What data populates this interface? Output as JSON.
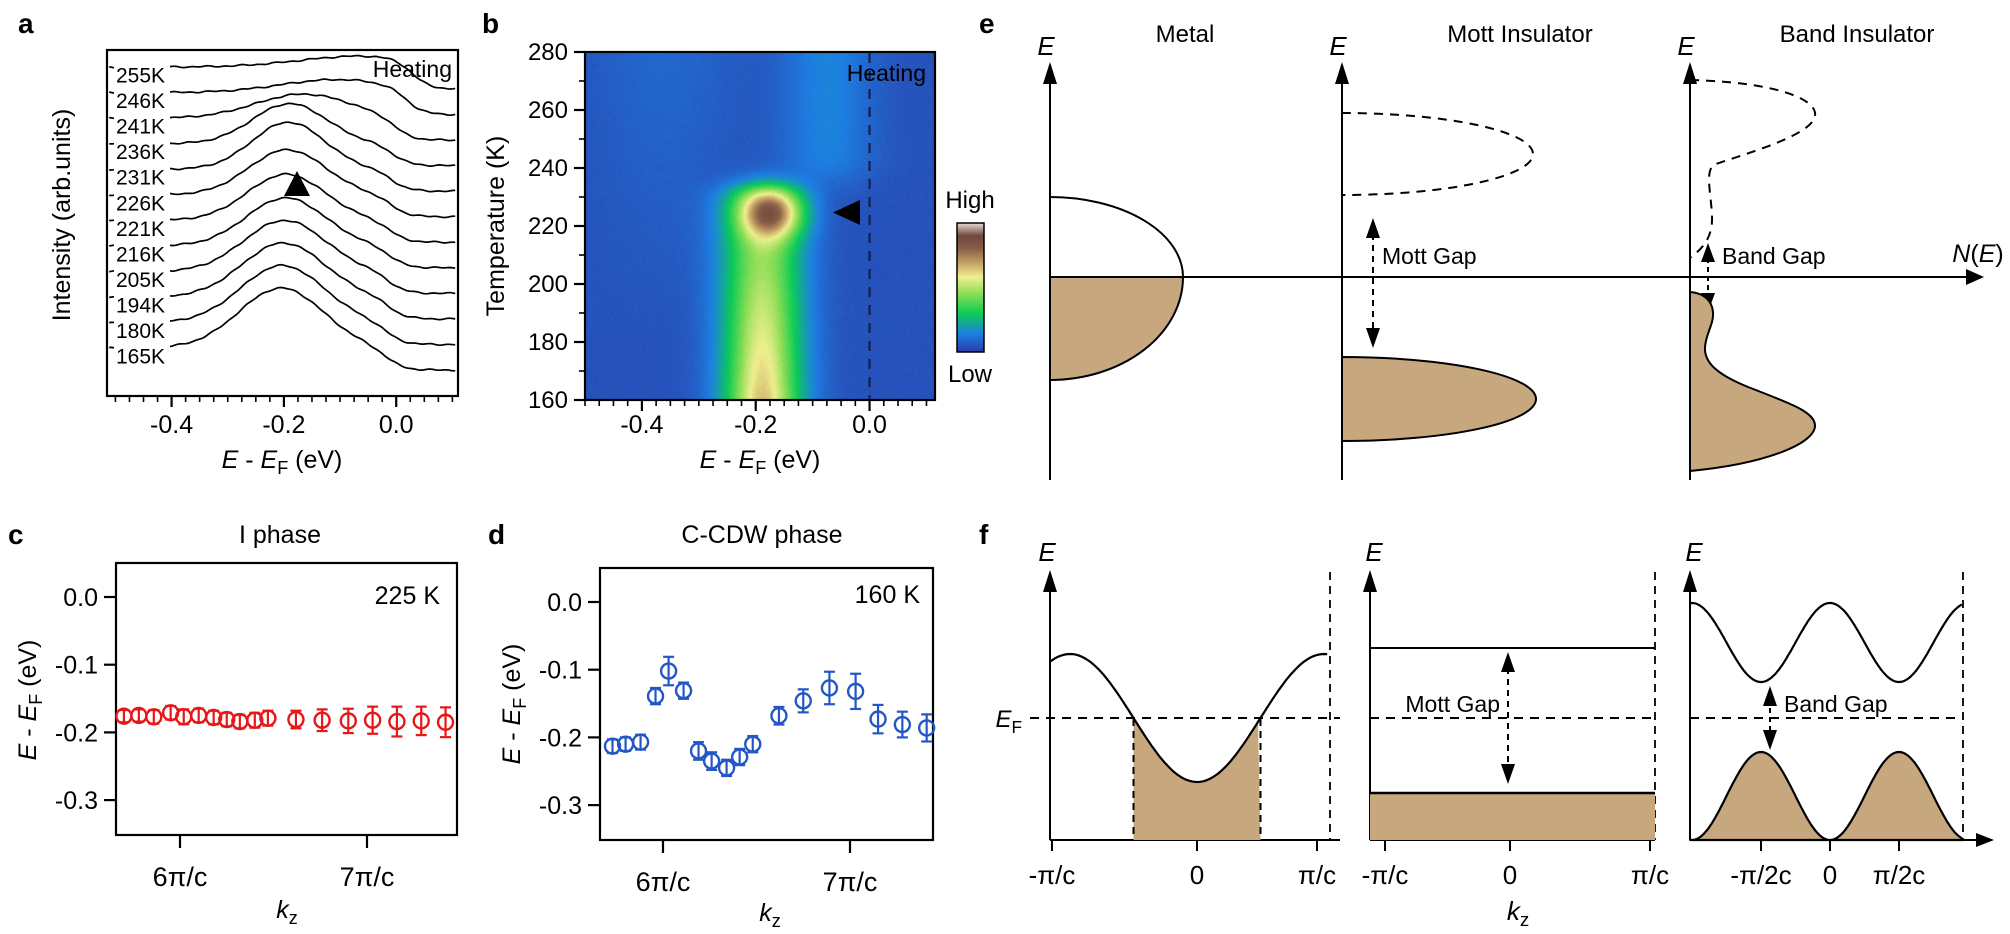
{
  "colors": {
    "tan": "#c7a77d",
    "red": "#e81616",
    "blue": "#2457c5",
    "heat_background": "#2b3aa5"
  },
  "panel_letters": {
    "a": "a",
    "b": "b",
    "c": "c",
    "d": "d",
    "e": "e",
    "f": "f"
  },
  "chart_data": [
    {
      "panel": "a",
      "type": "line",
      "annotation": "Heating",
      "ylabel": "Intensity (arb.units)",
      "xlabel": "{i:E} - {i:E}{s:F} (eV)",
      "xlim": [
        -0.515,
        0.11
      ],
      "x_major_ticks": [
        -0.4,
        -0.2,
        0.0
      ],
      "x_tick_labels": [
        "-0.4",
        "-0.2",
        "0.0"
      ],
      "x_minor_step": 0.025,
      "marker_E": -0.19,
      "curves": [
        {
          "label": "255K",
          "center": -0.06,
          "width": 0.11,
          "amp": 11,
          "edge": 0.03
        },
        {
          "label": "246K",
          "center": -0.105,
          "width": 0.1,
          "amp": 13,
          "edge": 0.02
        },
        {
          "label": "241K",
          "center": -0.165,
          "width": 0.085,
          "amp": 24,
          "edge": 0.0
        },
        {
          "label": "236K",
          "center": -0.19,
          "width": 0.066,
          "amp": 40,
          "edge": -0.005
        },
        {
          "label": "231K",
          "center": -0.192,
          "width": 0.064,
          "amp": 47,
          "edge": -0.008
        },
        {
          "label": "226K",
          "center": -0.194,
          "width": 0.068,
          "amp": 45,
          "edge": -0.008
        },
        {
          "label": "221K",
          "center": -0.196,
          "width": 0.069,
          "amp": 46,
          "edge": -0.01
        },
        {
          "label": "216K",
          "center": -0.197,
          "width": 0.07,
          "amp": 48,
          "edge": -0.01
        },
        {
          "label": "205K",
          "center": -0.199,
          "width": 0.072,
          "amp": 51,
          "edge": -0.012
        },
        {
          "label": "194K",
          "center": -0.201,
          "width": 0.073,
          "amp": 54,
          "edge": -0.012
        },
        {
          "label": "180K",
          "center": -0.203,
          "width": 0.074,
          "amp": 57,
          "edge": -0.015
        },
        {
          "label": "165K",
          "center": -0.205,
          "width": 0.075,
          "amp": 60,
          "edge": -0.015
        }
      ]
    },
    {
      "panel": "b",
      "type": "heatmap",
      "annotation": "Heating",
      "ylabel": "Temperature (K)",
      "xlabel": "{i:E} - {i:E}{s:F} (eV)",
      "xlim": [
        -0.5,
        0.115
      ],
      "ylim": [
        160,
        280
      ],
      "x_major_ticks": [
        -0.4,
        -0.2,
        0.0
      ],
      "x_tick_labels": [
        "-0.4",
        "-0.2",
        "0.0"
      ],
      "x_minor_step": 0.025,
      "y_major_step": 20,
      "y_minor_step": 10,
      "y_tick_labels": [
        "160",
        "180",
        "200",
        "220",
        "240",
        "260",
        "280"
      ],
      "dashed_line_E": 0.0,
      "marker": {
        "T": 225,
        "E": -0.045
      },
      "colorbar": {
        "high_label": "High",
        "low_label": "Low",
        "stops": [
          [
            0,
            "#2b3aa5"
          ],
          [
            0.14,
            "#1d7fe3"
          ],
          [
            0.3,
            "#0ccc55"
          ],
          [
            0.45,
            "#8add55"
          ],
          [
            0.58,
            "#f0ef8e"
          ],
          [
            0.7,
            "#c09a62"
          ],
          [
            0.8,
            "#8a5f48"
          ],
          [
            0.9,
            "#6f473e"
          ],
          [
            1,
            "#ead9d4"
          ]
        ]
      },
      "model": {
        "background": 0.05,
        "wash": {
          "E": -0.36,
          "sigma": 0.09,
          "amp": 0.045
        },
        "column": {
          "center": -0.188,
          "sigma": 0.05,
          "amp_base": 0.36,
          "amp_slope": 0.0022,
          "T_cutoff": 233.5,
          "cutoff_width": 2.0
        },
        "core": {
          "amp": 0.08,
          "sigma": 0.028,
          "T_full": 205,
          "T_range": 45
        },
        "hotspot": {
          "T": 224.5,
          "T_sigma": 6.0,
          "E": -0.172,
          "E_sigma": 0.038,
          "amp": 0.46
        },
        "high_T_branch": {
          "E": -0.075,
          "sigma": 0.055,
          "amp": 0.1,
          "T_onset": 236,
          "onset_width": 3
        }
      }
    },
    {
      "panel": "c",
      "type": "scatter",
      "title": "I phase",
      "annotation": "225 K",
      "color": "#e81616",
      "xlabel": "{i:k}{s:z}",
      "ylabel": "{i:E} - {i:E}{s:F} (eV)",
      "x_unit": "π/c",
      "x_ticks": [
        {
          "v": 6,
          "label": "6π/c"
        },
        {
          "v": 7,
          "label": "7π/c"
        }
      ],
      "y_ticks": [
        {
          "v": 0.0,
          "label": "0.0"
        },
        {
          "v": -0.1,
          "label": "-0.1"
        },
        {
          "v": -0.2,
          "label": "-0.2"
        },
        {
          "v": -0.3,
          "label": "-0.3"
        }
      ],
      "points": {
        "kz": [
          5.7,
          5.78,
          5.86,
          5.95,
          6.02,
          6.1,
          6.18,
          6.25,
          6.32,
          6.4,
          6.47,
          6.62,
          6.76,
          6.9,
          7.03,
          7.16,
          7.29,
          7.42
        ],
        "E": [
          -0.176,
          -0.175,
          -0.177,
          -0.171,
          -0.177,
          -0.175,
          -0.178,
          -0.181,
          -0.184,
          -0.182,
          -0.179,
          -0.181,
          -0.182,
          -0.183,
          -0.182,
          -0.184,
          -0.183,
          -0.185
        ],
        "err": [
          0.009,
          0.009,
          0.01,
          0.01,
          0.011,
          0.01,
          0.01,
          0.01,
          0.01,
          0.011,
          0.011,
          0.013,
          0.016,
          0.018,
          0.02,
          0.022,
          0.021,
          0.022
        ]
      }
    },
    {
      "panel": "d",
      "type": "scatter",
      "title": "C-CDW phase",
      "annotation": "160 K",
      "color": "#2457c5",
      "xlabel": "{i:k}{s:z}",
      "ylabel": "{i:E} - {i:E}{s:F} (eV)",
      "x_unit": "π/c",
      "x_ticks": [
        {
          "v": 6,
          "label": "6π/c"
        },
        {
          "v": 7,
          "label": "7π/c"
        }
      ],
      "y_ticks": [
        {
          "v": 0.0,
          "label": "0.0"
        },
        {
          "v": -0.1,
          "label": "-0.1"
        },
        {
          "v": -0.2,
          "label": "-0.2"
        },
        {
          "v": -0.3,
          "label": "-0.3"
        }
      ],
      "points": {
        "kz": [
          5.73,
          5.8,
          5.88,
          5.96,
          6.03,
          6.11,
          6.19,
          6.26,
          6.34,
          6.41,
          6.48,
          6.62,
          6.75,
          6.89,
          7.03,
          7.15,
          7.28,
          7.41
        ],
        "E": [
          -0.213,
          -0.21,
          -0.207,
          -0.139,
          -0.102,
          -0.131,
          -0.22,
          -0.235,
          -0.245,
          -0.229,
          -0.21,
          -0.168,
          -0.146,
          -0.127,
          -0.132,
          -0.173,
          -0.181,
          -0.186
        ],
        "err": [
          0.01,
          0.01,
          0.011,
          0.012,
          0.021,
          0.012,
          0.013,
          0.013,
          0.012,
          0.012,
          0.012,
          0.013,
          0.017,
          0.024,
          0.026,
          0.021,
          0.019,
          0.02
        ]
      }
    },
    {
      "panel": "e",
      "type": "schematic-dos",
      "titles": [
        "Metal",
        "Mott Insulator",
        "Band Insulator"
      ],
      "e_axis_label": "{i:E}",
      "n_axis_label": "{i:N}({i:E})",
      "mott_gap_label": "Mott Gap",
      "band_gap_label": "Band Gap"
    },
    {
      "panel": "f",
      "type": "schematic-bands",
      "e_axis_label": "{i:E}",
      "ef_label": "{i:E}{s:F}",
      "mott_gap_label": "Mott Gap",
      "band_gap_label": "Band Gap",
      "k_axis_label": "{i:k}{s:z}",
      "x_tick_labels_metal": [
        "-π/c",
        "0",
        "π/c"
      ],
      "x_tick_labels_mott": [
        "-π/c",
        "0",
        "π/c"
      ],
      "x_tick_labels_band": [
        "-π/2c",
        "0",
        "π/2c"
      ]
    }
  ]
}
